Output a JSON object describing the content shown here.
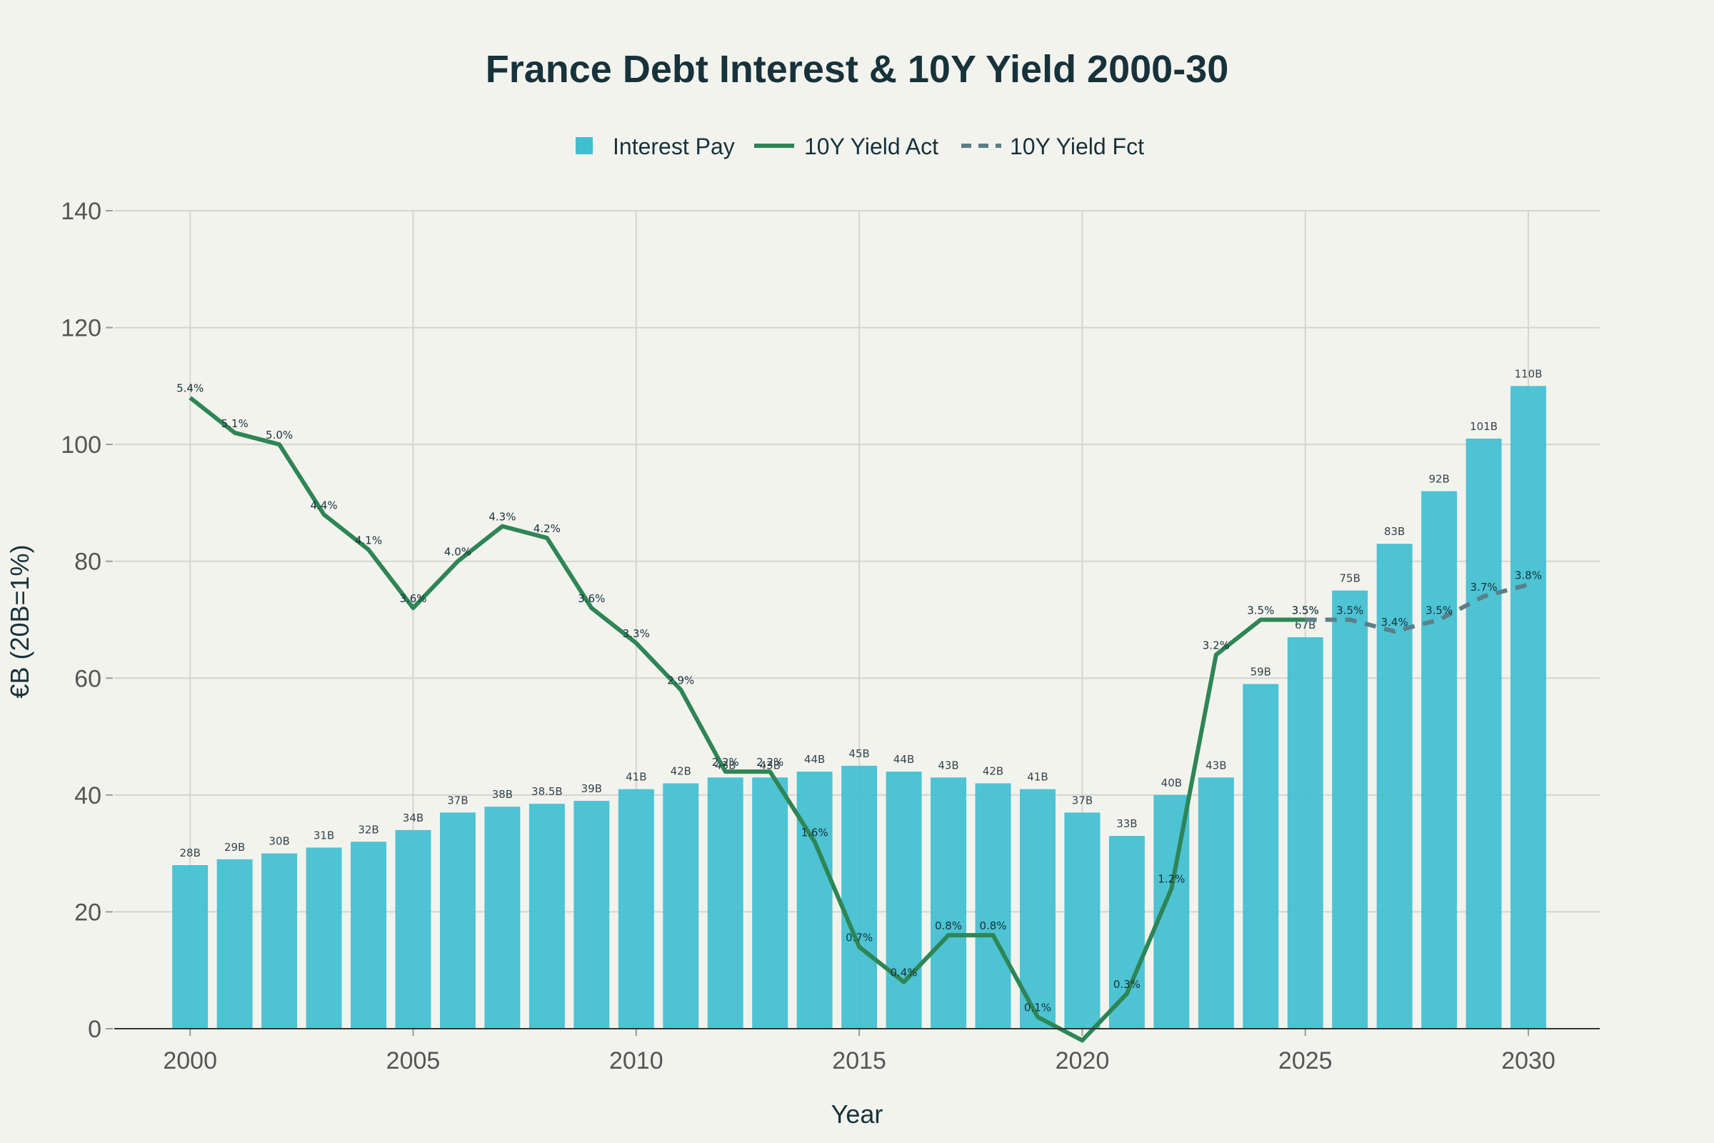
{
  "chart_data": {
    "type": "bar",
    "title": "France Debt Interest & 10Y Yield 2000-30",
    "xlabel": "Year",
    "ylabel": "€B (20B=1%)",
    "ylim": [
      0,
      140
    ],
    "yticks": [
      0,
      20,
      40,
      60,
      80,
      100,
      120,
      140
    ],
    "xlim": [
      1998.3,
      2031.6
    ],
    "xticks": [
      2000,
      2005,
      2010,
      2015,
      2020,
      2025,
      2030
    ],
    "grid": true,
    "legend_position": "top-center",
    "categories": [
      2000,
      2001,
      2002,
      2003,
      2004,
      2005,
      2006,
      2007,
      2008,
      2009,
      2010,
      2011,
      2012,
      2013,
      2014,
      2015,
      2016,
      2017,
      2018,
      2019,
      2020,
      2021,
      2022,
      2023,
      2024,
      2025,
      2026,
      2027,
      2028,
      2029,
      2030
    ],
    "series": [
      {
        "name": "Interest Pay",
        "kind": "bar",
        "color": "#3fbfd0",
        "values": [
          28,
          29,
          30,
          31,
          32,
          34,
          37,
          38,
          38.5,
          39,
          41,
          42,
          43,
          43,
          44,
          45,
          44,
          43,
          42,
          41,
          37,
          33,
          40,
          43,
          59,
          67,
          75,
          83,
          92,
          101,
          110
        ],
        "labels": [
          "28B",
          "29B",
          "30B",
          "31B",
          "32B",
          "34B",
          "37B",
          "38B",
          "38.5B",
          "39B",
          "41B",
          "42B",
          "43B",
          "43B",
          "44B",
          "45B",
          "44B",
          "43B",
          "42B",
          "41B",
          "37B",
          "33B",
          "40B",
          "43B",
          "59B",
          "67B",
          "75B",
          "83B",
          "92B",
          "101B",
          "110B"
        ]
      },
      {
        "name": "10Y Yield Act",
        "kind": "line",
        "color": "#2e8555",
        "dash": "solid",
        "x": [
          2000,
          2001,
          2002,
          2003,
          2004,
          2005,
          2006,
          2007,
          2008,
          2009,
          2010,
          2011,
          2012,
          2013,
          2014,
          2015,
          2016,
          2017,
          2018,
          2019,
          2020,
          2021,
          2022,
          2023,
          2024,
          2025
        ],
        "values": [
          5.4,
          5.1,
          5.0,
          4.4,
          4.1,
          3.6,
          4.0,
          4.3,
          4.2,
          3.6,
          3.3,
          2.9,
          2.2,
          2.2,
          1.6,
          0.7,
          0.4,
          0.8,
          0.8,
          0.1,
          -0.1,
          0.3,
          1.2,
          3.2,
          3.5,
          3.5
        ],
        "labels": [
          "5.4%",
          "5.1%",
          "5.0%",
          "4.4%",
          "4.1%",
          "3.6%",
          "4.0%",
          "4.3%",
          "4.2%",
          "3.6%",
          "3.3%",
          "2.9%",
          "2.2%",
          "2.2%",
          "1.6%",
          "0.7%",
          "0.4%",
          "0.8%",
          "0.8%",
          "0.1%",
          "",
          "0.3%",
          "1.2%",
          "3.2%",
          "3.5%",
          "3.5%"
        ]
      },
      {
        "name": "10Y Yield Fct",
        "kind": "line",
        "color": "#5b7f86",
        "dash": "dashed",
        "x": [
          2025,
          2026,
          2027,
          2028,
          2029,
          2030
        ],
        "values": [
          3.5,
          3.5,
          3.4,
          3.5,
          3.7,
          3.8
        ],
        "labels": [
          "3.5%",
          "3.5%",
          "3.4%",
          "3.5%",
          "3.7%",
          "3.8%"
        ]
      }
    ],
    "secondary_scale_note": "20B=1%"
  }
}
